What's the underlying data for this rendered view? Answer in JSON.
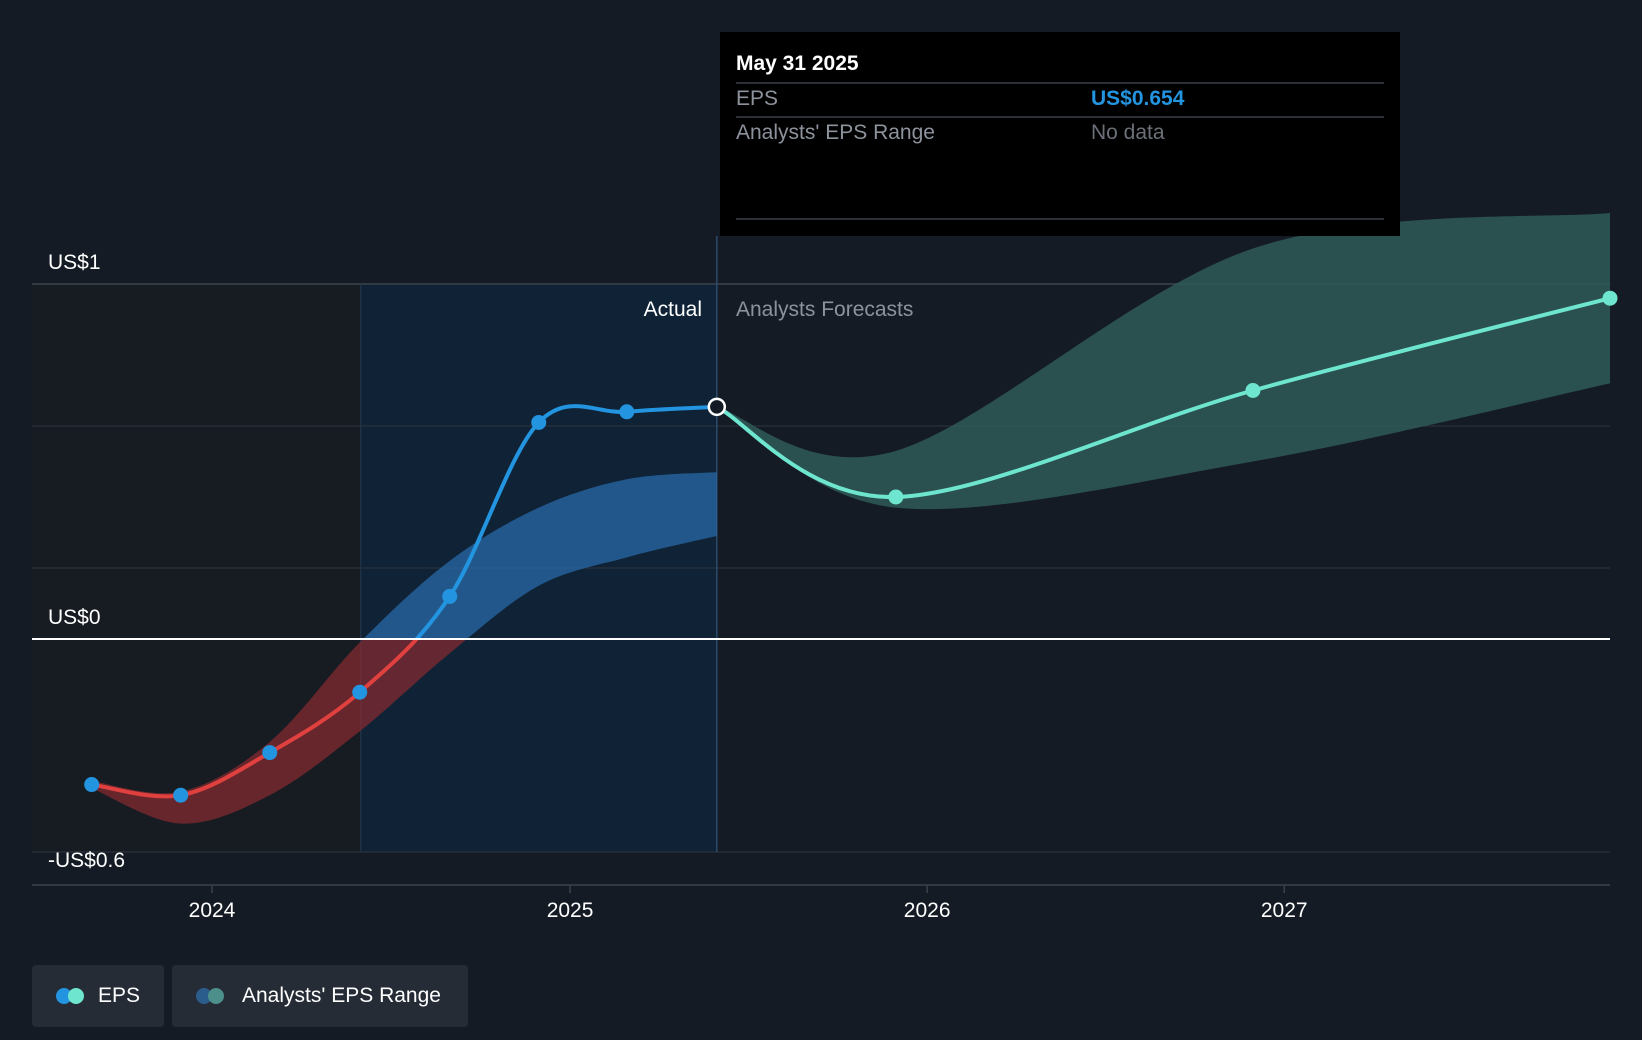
{
  "colors": {
    "background": "#151b24",
    "actual_shade": "#0f2236",
    "past_shade": "#171c22",
    "grid": "#2a313c",
    "zero_line": "#ffffff",
    "eps_positive": "#2394df",
    "eps_negative": "#e0413f",
    "eps_forecast": "#6ee5cf",
    "range_actual": "#2a6aa8",
    "range_negative": "#8a2b30",
    "range_forecast": "#2e5a57",
    "tooltip_bg": "#000000",
    "tooltip_value": "#2394df",
    "text_muted": "#8d939c"
  },
  "tooltip": {
    "date": "May 31 2025",
    "rows": [
      {
        "label": "EPS",
        "value": "US$0.654"
      },
      {
        "label": "Analysts' EPS Range",
        "value": "No data"
      }
    ]
  },
  "labels": {
    "actual": "Actual",
    "forecast": "Analysts Forecasts"
  },
  "legend": [
    {
      "label": "EPS",
      "icon": "eps-legend-dots",
      "colors": [
        "#2394df",
        "#6ee5cf"
      ]
    },
    {
      "label": "Analysts' EPS Range",
      "icon": "range-legend-dots",
      "colors": [
        "#2a5d8c",
        "#4d8f8a"
      ]
    }
  ],
  "chart_data": {
    "type": "line",
    "ylim": [
      -0.6,
      1
    ],
    "y_tick_labels": [
      {
        "value": 1,
        "label": "US$1"
      },
      {
        "value": 0,
        "label": "US$0"
      },
      {
        "value": -0.6,
        "label": "-US$0.6"
      }
    ],
    "xlim": [
      "2023-07-01",
      "2027-11-30"
    ],
    "x_tick_labels": [
      {
        "value": "2024-01-01",
        "label": "2024"
      },
      {
        "value": "2025-01-01",
        "label": "2025"
      },
      {
        "value": "2026-01-01",
        "label": "2026"
      },
      {
        "value": "2027-01-01",
        "label": "2027"
      }
    ],
    "actual_region": [
      "2024-06-01",
      "2025-05-31"
    ],
    "series": [
      {
        "name": "EPS",
        "kind": "actual",
        "x": [
          "2023-08-31",
          "2023-11-30",
          "2024-02-29",
          "2024-05-31",
          "2024-08-31",
          "2024-11-30",
          "2025-02-28",
          "2025-05-31"
        ],
        "y": [
          -0.41,
          -0.44,
          -0.32,
          -0.15,
          0.12,
          0.61,
          0.64,
          0.654
        ]
      },
      {
        "name": "EPS",
        "kind": "forecast",
        "x": [
          "2025-05-31",
          "2025-11-30",
          "2026-11-30",
          "2027-11-30"
        ],
        "y": [
          0.654,
          0.4,
          0.7,
          0.96
        ]
      }
    ],
    "range": [
      {
        "x": [
          "2023-08-31",
          "2023-11-30",
          "2024-02-29",
          "2024-05-31",
          "2024-08-31",
          "2024-11-30",
          "2025-02-28",
          "2025-05-31"
        ],
        "low": [
          -0.42,
          -0.52,
          -0.44,
          -0.26,
          -0.04,
          0.15,
          0.23,
          0.29
        ],
        "high": [
          -0.4,
          -0.43,
          -0.29,
          -0.01,
          0.22,
          0.37,
          0.45,
          0.47
        ]
      },
      {
        "x": [
          "2025-05-31",
          "2025-11-30",
          "2026-11-30",
          "2027-11-30"
        ],
        "low": [
          0.654,
          0.37,
          0.5,
          0.72
        ],
        "high": [
          0.654,
          0.53,
          1.1,
          1.2
        ]
      }
    ]
  }
}
